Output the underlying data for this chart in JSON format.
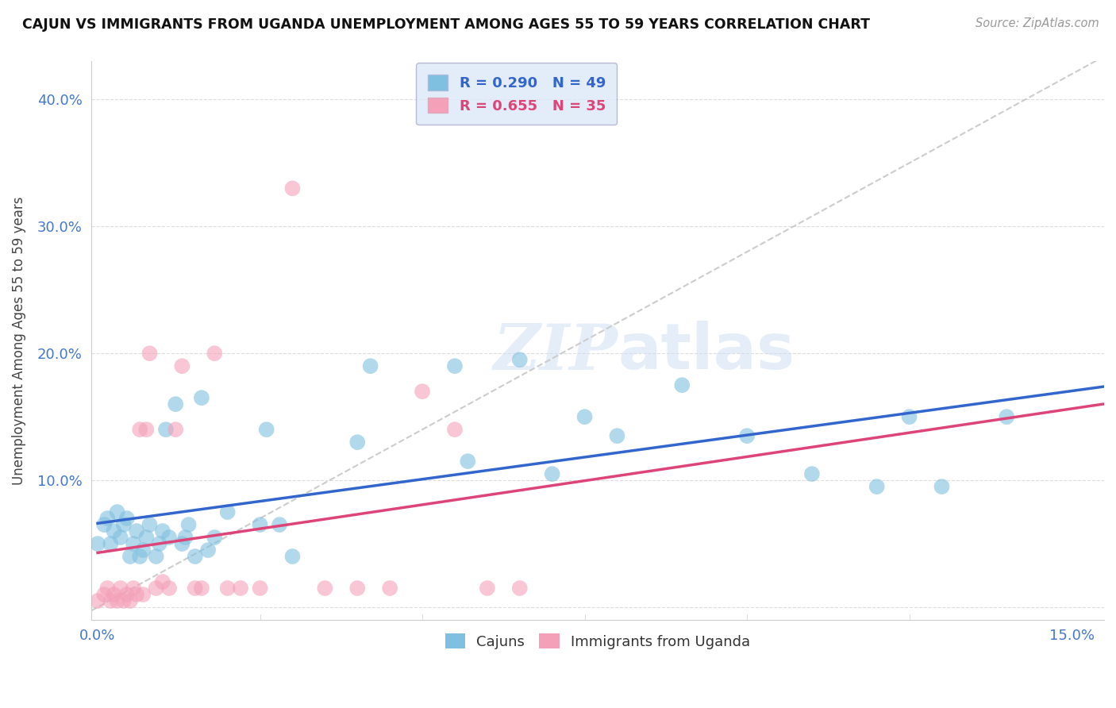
{
  "title": "CAJUN VS IMMIGRANTS FROM UGANDA UNEMPLOYMENT AMONG AGES 55 TO 59 YEARS CORRELATION CHART",
  "source": "Source: ZipAtlas.com",
  "xlim": [
    -0.1,
    15.5
  ],
  "ylim": [
    -1.0,
    43.0
  ],
  "x_ticks": [
    0.0,
    15.0
  ],
  "x_tick_labels": [
    "0.0%",
    "15.0%"
  ],
  "y_ticks": [
    0.0,
    10.0,
    20.0,
    30.0,
    40.0
  ],
  "y_tick_labels": [
    "",
    "10.0%",
    "20.0%",
    "30.0%",
    "40.0%"
  ],
  "cajun_R": 0.29,
  "cajun_N": 49,
  "uganda_R": 0.655,
  "uganda_N": 35,
  "cajun_color": "#7fbfdf",
  "uganda_color": "#f4a0b8",
  "cajun_trend_color": "#3366cc",
  "uganda_trend_color": "#dd4477",
  "ref_line_color": "#cccccc",
  "legend_box_color": "#dde8f8",
  "watermark_color": "#ccddf5",
  "cajun_x": [
    0.0,
    0.1,
    0.15,
    0.2,
    0.25,
    0.3,
    0.35,
    0.4,
    0.45,
    0.5,
    0.55,
    0.6,
    0.65,
    0.7,
    0.75,
    0.8,
    0.9,
    0.95,
    1.0,
    1.05,
    1.1,
    1.2,
    1.3,
    1.35,
    1.4,
    1.5,
    1.6,
    1.7,
    1.8,
    2.0,
    2.5,
    2.6,
    2.8,
    3.0,
    4.0,
    4.2,
    5.5,
    5.7,
    6.5,
    7.0,
    7.5,
    8.0,
    9.0,
    10.0,
    11.0,
    12.0,
    12.5,
    13.0,
    14.0
  ],
  "cajun_y": [
    5.0,
    6.5,
    7.0,
    5.0,
    6.0,
    7.5,
    5.5,
    6.5,
    7.0,
    4.0,
    5.0,
    6.0,
    4.0,
    4.5,
    5.5,
    6.5,
    4.0,
    5.0,
    6.0,
    14.0,
    5.5,
    16.0,
    5.0,
    5.5,
    6.5,
    4.0,
    16.5,
    4.5,
    5.5,
    7.5,
    6.5,
    14.0,
    6.5,
    4.0,
    13.0,
    19.0,
    19.0,
    11.5,
    19.5,
    10.5,
    15.0,
    13.5,
    17.5,
    13.5,
    10.5,
    9.5,
    15.0,
    9.5,
    15.0
  ],
  "uganda_x": [
    0.0,
    0.1,
    0.15,
    0.2,
    0.25,
    0.3,
    0.35,
    0.4,
    0.45,
    0.5,
    0.55,
    0.6,
    0.65,
    0.7,
    0.75,
    0.8,
    0.9,
    1.0,
    1.1,
    1.2,
    1.3,
    1.5,
    1.6,
    1.8,
    2.0,
    2.2,
    2.5,
    3.0,
    3.5,
    4.0,
    4.5,
    5.0,
    5.5,
    6.0,
    6.5
  ],
  "uganda_y": [
    0.5,
    1.0,
    1.5,
    0.5,
    1.0,
    0.5,
    1.5,
    0.5,
    1.0,
    0.5,
    1.5,
    1.0,
    14.0,
    1.0,
    14.0,
    20.0,
    1.5,
    2.0,
    1.5,
    14.0,
    19.0,
    1.5,
    1.5,
    20.0,
    1.5,
    1.5,
    1.5,
    33.0,
    1.5,
    1.5,
    1.5,
    17.0,
    14.0,
    1.5,
    1.5
  ]
}
